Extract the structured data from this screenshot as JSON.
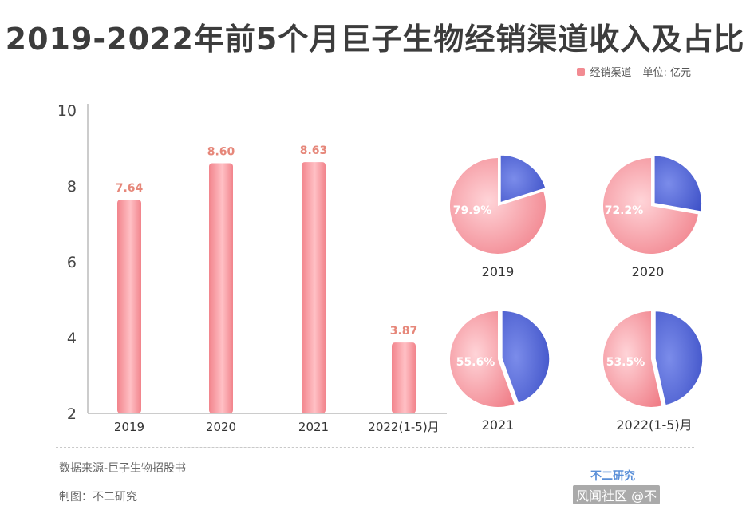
{
  "title": "2019-2022年前5个月巨子生物经销渠道收入及占比",
  "legend": {
    "series_name": "经销渠道",
    "unit": "单位: 亿元"
  },
  "colors": {
    "pink": "#f28b92",
    "blue": "#4f63d6"
  },
  "chart_data": [
    {
      "type": "bar",
      "categories": [
        "2019",
        "2020",
        "2021",
        "2022(1-5)月"
      ],
      "series": [
        {
          "name": "经销渠道",
          "values": [
            7.64,
            8.6,
            8.63,
            3.87
          ]
        }
      ],
      "data_labels": [
        "7.64",
        "8.60",
        "8.63",
        "3.87"
      ],
      "yticks": [
        "2",
        "4",
        "6",
        "8",
        "10"
      ],
      "ylim": [
        2,
        10
      ],
      "grid": false
    },
    {
      "type": "pie",
      "charts": [
        {
          "label": "2019",
          "share": 79.9,
          "share_label": "79.9%"
        },
        {
          "label": "2020",
          "share": 72.2,
          "share_label": "72.2%"
        },
        {
          "label": "2021",
          "share": 55.6,
          "share_label": "55.6%"
        },
        {
          "label": "2022(1-5)月",
          "share": 53.5,
          "share_label": "53.5%"
        }
      ]
    }
  ],
  "footer": {
    "source": "数据来源-巨子生物招股书",
    "maker": "制图：不二研究",
    "brand": "不二研究",
    "credit": "风闻社区 @不"
  }
}
